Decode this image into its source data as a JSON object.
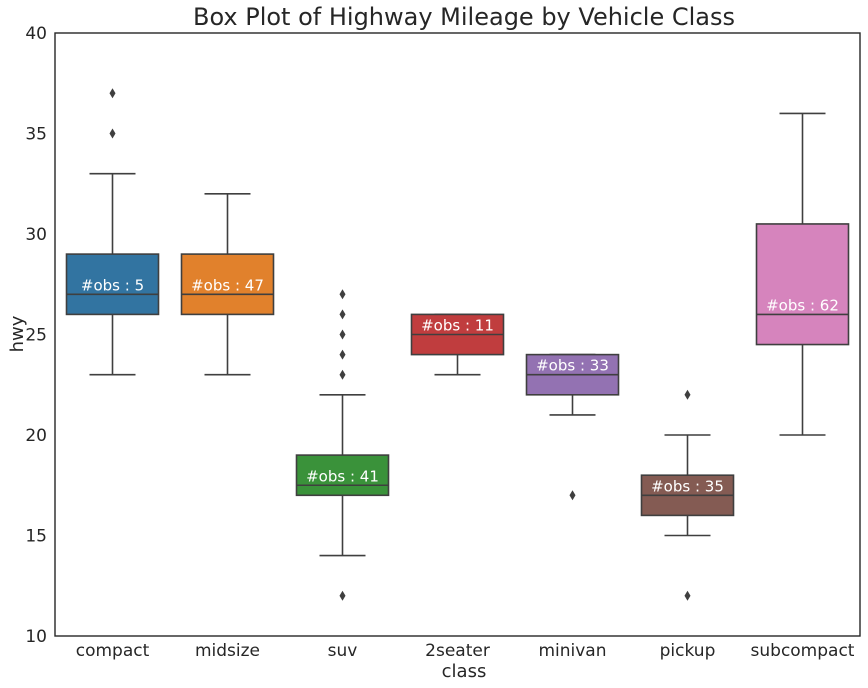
{
  "chart_data": {
    "type": "box",
    "title": "Box Plot of Highway Mileage by Vehicle Class",
    "xlabel": "class",
    "ylabel": "hwy",
    "ylim": [
      10,
      40
    ],
    "yticks": [
      10,
      15,
      20,
      25,
      30,
      35,
      40
    ],
    "grid": false,
    "categories": [
      "compact",
      "midsize",
      "suv",
      "2seater",
      "minivan",
      "pickup",
      "subcompact"
    ],
    "boxes": [
      {
        "category": "compact",
        "color": "#3274a1",
        "whisker_low": 23,
        "q1": 26,
        "median": 27,
        "q3": 29,
        "whisker_high": 33,
        "outliers": [
          35,
          37
        ],
        "annotation": "#obs : 5"
      },
      {
        "category": "midsize",
        "color": "#e1812c",
        "whisker_low": 23,
        "q1": 26,
        "median": 27,
        "q3": 29,
        "whisker_high": 32,
        "outliers": [],
        "annotation": "#obs : 47"
      },
      {
        "category": "suv",
        "color": "#3a923a",
        "whisker_low": 14,
        "q1": 17,
        "median": 17.5,
        "q3": 19,
        "whisker_high": 22,
        "outliers": [
          12,
          23,
          24,
          25,
          26,
          27
        ],
        "annotation": "#obs : 41"
      },
      {
        "category": "2seater",
        "color": "#c03d3e",
        "whisker_low": 23,
        "q1": 24,
        "median": 25,
        "q3": 26,
        "whisker_high": 26,
        "outliers": [],
        "annotation": "#obs : 11"
      },
      {
        "category": "minivan",
        "color": "#9372b2",
        "whisker_low": 21,
        "q1": 22,
        "median": 23,
        "q3": 24,
        "whisker_high": 24,
        "outliers": [
          17
        ],
        "annotation": "#obs : 33"
      },
      {
        "category": "pickup",
        "color": "#845b53",
        "whisker_low": 15,
        "q1": 16,
        "median": 17,
        "q3": 18,
        "whisker_high": 20,
        "outliers": [
          12,
          22
        ],
        "annotation": "#obs : 35"
      },
      {
        "category": "subcompact",
        "color": "#d684bd",
        "whisker_low": 20,
        "q1": 24.5,
        "median": 26,
        "q3": 30.5,
        "whisker_high": 36,
        "outliers": [],
        "annotation": "#obs : 62"
      }
    ]
  }
}
